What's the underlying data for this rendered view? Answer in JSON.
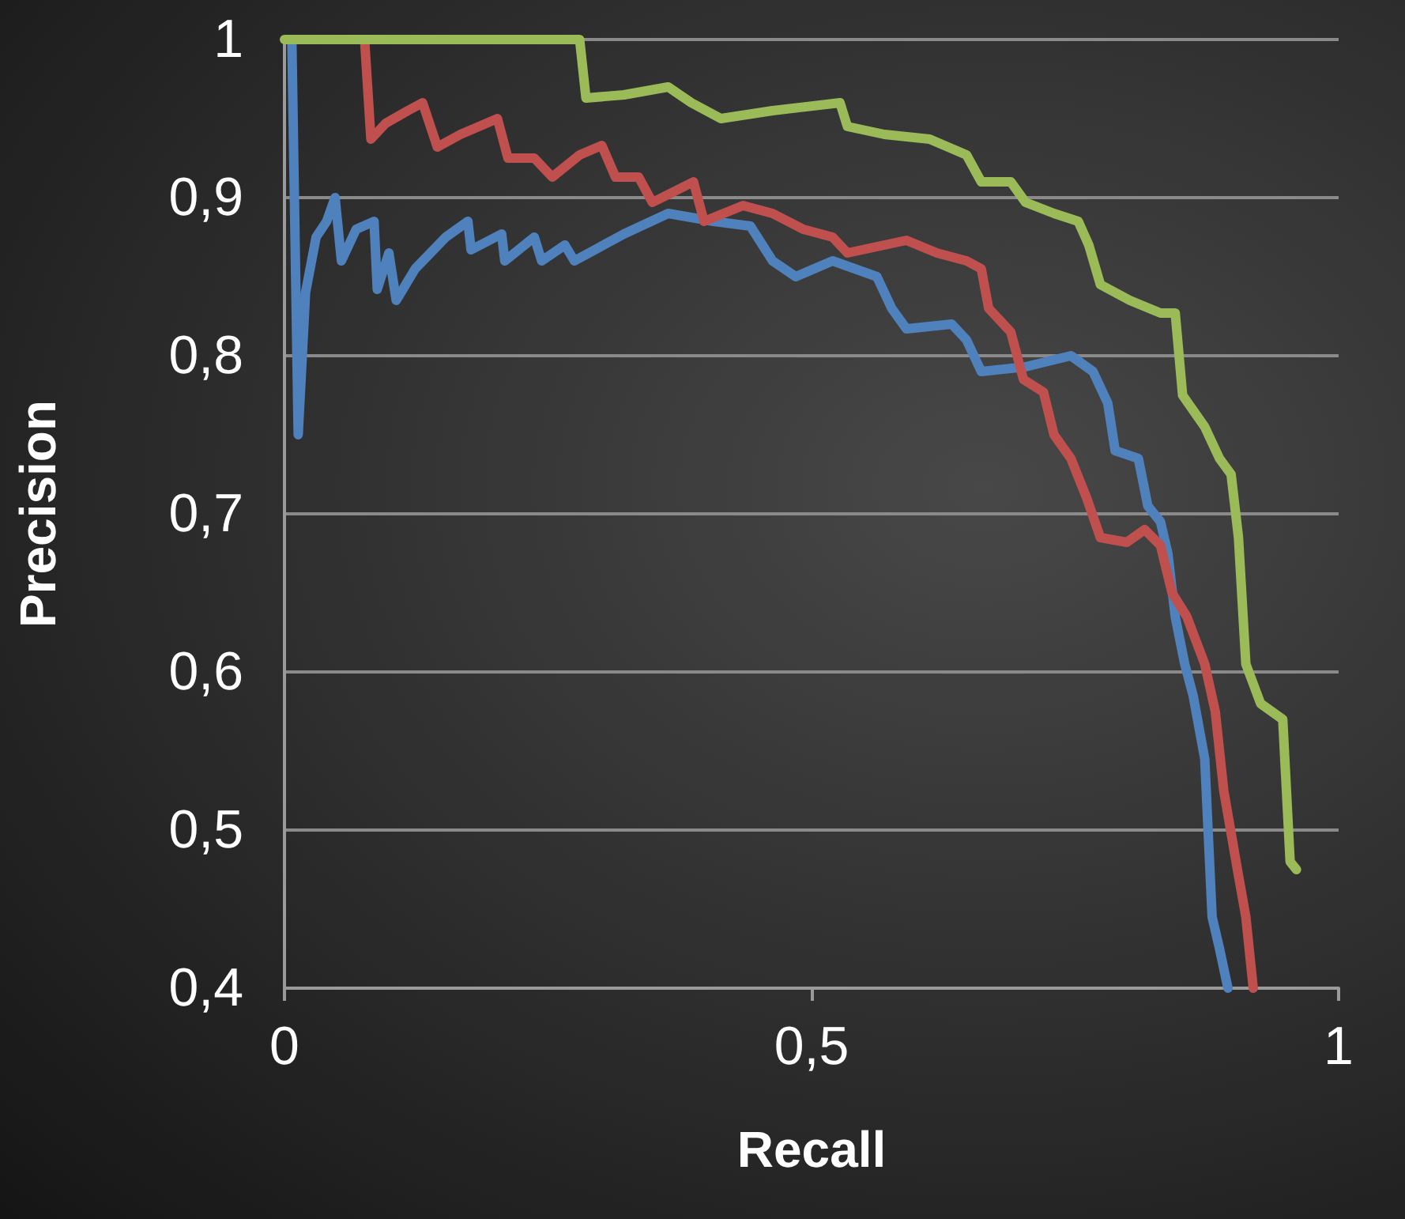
{
  "chart_data": {
    "type": "line",
    "xlabel": "Recall",
    "ylabel": "Precision",
    "xlim": [
      0,
      1
    ],
    "xticks": [
      0,
      {
        "value": 0.5,
        "label": "0,5"
      },
      1
    ],
    "ylim": [
      0.4,
      1
    ],
    "yticks": [
      {
        "value": 0.4,
        "label": "0,4"
      },
      {
        "value": 0.5,
        "label": "0,5"
      },
      {
        "value": 0.6,
        "label": "0,6"
      },
      {
        "value": 0.7,
        "label": "0,7"
      },
      {
        "value": 0.8,
        "label": "0,8"
      },
      {
        "value": 0.9,
        "label": "0,9"
      },
      1
    ],
    "grid": "y",
    "marker": "none",
    "line_style": "solid",
    "series": [
      {
        "color": "#4f81bd",
        "x": [
          0.007,
          0.013,
          0.02,
          0.03,
          0.04,
          0.048,
          0.054,
          0.068,
          0.085,
          0.088,
          0.099,
          0.106,
          0.124,
          0.153,
          0.174,
          0.177,
          0.206,
          0.209,
          0.237,
          0.244,
          0.266,
          0.275,
          0.322,
          0.364,
          0.407,
          0.442,
          0.463,
          0.485,
          0.52,
          0.562,
          0.576,
          0.59,
          0.633,
          0.647,
          0.661,
          0.703,
          0.746,
          0.767,
          0.781,
          0.788,
          0.81,
          0.819,
          0.831,
          0.838,
          0.845,
          0.854,
          0.862,
          0.873,
          0.88,
          0.887,
          0.895
        ],
        "values": [
          1.0,
          0.75,
          0.84,
          0.875,
          0.885,
          0.9,
          0.86,
          0.88,
          0.885,
          0.842,
          0.865,
          0.835,
          0.855,
          0.875,
          0.885,
          0.867,
          0.877,
          0.86,
          0.875,
          0.86,
          0.87,
          0.86,
          0.877,
          0.89,
          0.885,
          0.882,
          0.86,
          0.85,
          0.86,
          0.85,
          0.83,
          0.817,
          0.82,
          0.81,
          0.79,
          0.793,
          0.8,
          0.79,
          0.77,
          0.74,
          0.735,
          0.705,
          0.695,
          0.675,
          0.635,
          0.605,
          0.585,
          0.545,
          0.445,
          0.425,
          0.4
        ]
      },
      {
        "color": "#c0504d",
        "x": [
          0.076,
          0.082,
          0.096,
          0.117,
          0.131,
          0.145,
          0.167,
          0.202,
          0.212,
          0.237,
          0.254,
          0.28,
          0.301,
          0.314,
          0.336,
          0.349,
          0.388,
          0.398,
          0.435,
          0.463,
          0.492,
          0.52,
          0.534,
          0.59,
          0.619,
          0.647,
          0.661,
          0.668,
          0.689,
          0.701,
          0.72,
          0.73,
          0.746,
          0.761,
          0.774,
          0.799,
          0.816,
          0.831,
          0.842,
          0.856,
          0.873,
          0.883,
          0.891,
          0.904,
          0.912,
          0.919
        ],
        "values": [
          1.0,
          0.937,
          0.947,
          0.955,
          0.96,
          0.932,
          0.94,
          0.95,
          0.925,
          0.925,
          0.913,
          0.927,
          0.933,
          0.913,
          0.913,
          0.897,
          0.91,
          0.885,
          0.895,
          0.89,
          0.88,
          0.875,
          0.865,
          0.873,
          0.865,
          0.86,
          0.855,
          0.83,
          0.815,
          0.785,
          0.777,
          0.75,
          0.735,
          0.71,
          0.685,
          0.682,
          0.69,
          0.68,
          0.65,
          0.635,
          0.605,
          0.575,
          0.525,
          0.475,
          0.445,
          0.4
        ]
      },
      {
        "color": "#9bbb59",
        "x": [
          0,
          0.28,
          0.286,
          0.322,
          0.364,
          0.386,
          0.414,
          0.463,
          0.527,
          0.534,
          0.569,
          0.612,
          0.647,
          0.661,
          0.689,
          0.703,
          0.73,
          0.753,
          0.763,
          0.774,
          0.802,
          0.831,
          0.845,
          0.852,
          0.873,
          0.887,
          0.898,
          0.905,
          0.912,
          0.926,
          0.947,
          0.954,
          0.96
        ],
        "values": [
          1,
          1,
          0.963,
          0.965,
          0.97,
          0.96,
          0.95,
          0.955,
          0.96,
          0.945,
          0.94,
          0.937,
          0.927,
          0.91,
          0.91,
          0.897,
          0.89,
          0.885,
          0.87,
          0.845,
          0.835,
          0.827,
          0.827,
          0.775,
          0.755,
          0.735,
          0.725,
          0.685,
          0.605,
          0.58,
          0.57,
          0.48,
          0.475
        ]
      }
    ]
  }
}
